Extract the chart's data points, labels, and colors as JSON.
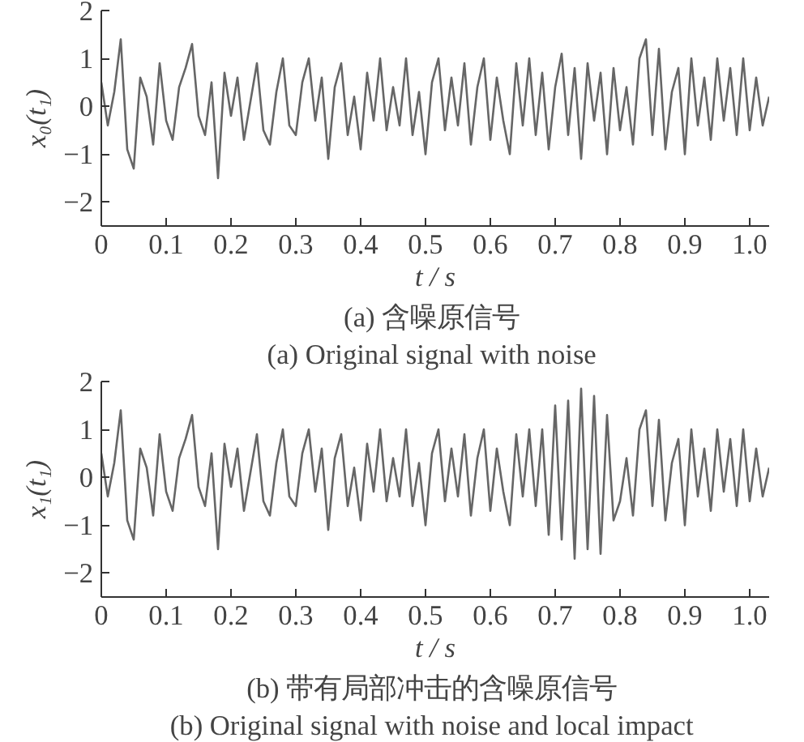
{
  "chart_data": [
    {
      "type": "line",
      "title": "(a)  含噪原信号",
      "subtitle": "(a)  Original signal with noise",
      "xlabel": "t / s",
      "ylabel": "x₀(t₁)",
      "x": [
        0,
        0.01,
        0.02,
        0.03,
        0.04,
        0.05,
        0.06,
        0.07,
        0.08,
        0.09,
        0.1,
        0.11,
        0.12,
        0.13,
        0.14,
        0.15,
        0.16,
        0.17,
        0.18,
        0.19,
        0.2,
        0.21,
        0.22,
        0.23,
        0.24,
        0.25,
        0.26,
        0.27,
        0.28,
        0.29,
        0.3,
        0.31,
        0.32,
        0.33,
        0.34,
        0.35,
        0.36,
        0.37,
        0.38,
        0.39,
        0.4,
        0.41,
        0.42,
        0.43,
        0.44,
        0.45,
        0.46,
        0.47,
        0.48,
        0.49,
        0.5,
        0.51,
        0.52,
        0.53,
        0.54,
        0.55,
        0.56,
        0.57,
        0.58,
        0.59,
        0.6,
        0.61,
        0.62,
        0.63,
        0.64,
        0.65,
        0.66,
        0.67,
        0.68,
        0.69,
        0.7,
        0.71,
        0.72,
        0.73,
        0.74,
        0.75,
        0.76,
        0.77,
        0.78,
        0.79,
        0.8,
        0.81,
        0.82,
        0.83,
        0.84,
        0.85,
        0.86,
        0.87,
        0.88,
        0.89,
        0.9,
        0.91,
        0.92,
        0.93,
        0.94,
        0.95,
        0.96,
        0.97,
        0.98,
        0.99,
        1.0,
        1.01,
        1.02,
        1.03
      ],
      "series": [
        {
          "color": "#666666",
          "values": [
            0.5,
            -0.4,
            0.3,
            1.4,
            -0.9,
            -1.3,
            0.6,
            0.2,
            -0.8,
            0.9,
            -0.3,
            -0.7,
            0.4,
            0.8,
            1.3,
            -0.2,
            -0.6,
            0.5,
            -1.5,
            0.7,
            -0.2,
            0.6,
            -0.7,
            0.1,
            0.9,
            -0.5,
            -0.8,
            0.3,
            1.0,
            -0.4,
            -0.6,
            0.5,
            1.0,
            -0.3,
            0.6,
            -1.1,
            0.4,
            0.9,
            -0.6,
            0.2,
            -0.9,
            0.7,
            -0.3,
            1.0,
            -0.5,
            0.4,
            -0.4,
            1.0,
            -0.6,
            0.3,
            -1.0,
            0.5,
            1.0,
            -0.5,
            0.6,
            -0.4,
            0.9,
            -0.8,
            0.4,
            1.0,
            -0.7,
            0.6,
            -0.3,
            -1.0,
            0.9,
            -0.4,
            1.0,
            -0.6,
            0.7,
            -0.9,
            0.4,
            1.1,
            -0.6,
            0.8,
            -1.1,
            0.9,
            -0.3,
            0.7,
            -1.0,
            0.8,
            -0.5,
            0.4,
            -0.8,
            1.0,
            1.4,
            -0.6,
            1.2,
            -0.9,
            0.3,
            0.8,
            -1.0,
            1.0,
            -0.4,
            0.6,
            -0.7,
            1.0,
            -0.3,
            0.8,
            -0.6,
            1.0,
            -0.5,
            0.6,
            -0.4,
            0.2
          ]
        }
      ],
      "xlim": [
        0,
        1.03
      ],
      "ylim": [
        -2.5,
        2
      ],
      "xticks": [
        0,
        0.1,
        0.2,
        0.3,
        0.4,
        0.5,
        0.6,
        0.7,
        0.8,
        0.9,
        {
          "value": 1,
          "label": "1.0"
        }
      ],
      "yticks": [
        -2,
        -1,
        0,
        1,
        2
      ],
      "grid": false
    },
    {
      "type": "line",
      "title": "(b)  带有局部冲击的含噪原信号",
      "subtitle": "(b)  Original signal with noise and local impact",
      "xlabel": "t / s",
      "ylabel": "x₁(t₁)",
      "x": [
        0,
        0.01,
        0.02,
        0.03,
        0.04,
        0.05,
        0.06,
        0.07,
        0.08,
        0.09,
        0.1,
        0.11,
        0.12,
        0.13,
        0.14,
        0.15,
        0.16,
        0.17,
        0.18,
        0.19,
        0.2,
        0.21,
        0.22,
        0.23,
        0.24,
        0.25,
        0.26,
        0.27,
        0.28,
        0.29,
        0.3,
        0.31,
        0.32,
        0.33,
        0.34,
        0.35,
        0.36,
        0.37,
        0.38,
        0.39,
        0.4,
        0.41,
        0.42,
        0.43,
        0.44,
        0.45,
        0.46,
        0.47,
        0.48,
        0.49,
        0.5,
        0.51,
        0.52,
        0.53,
        0.54,
        0.55,
        0.56,
        0.57,
        0.58,
        0.59,
        0.6,
        0.61,
        0.62,
        0.63,
        0.64,
        0.65,
        0.66,
        0.67,
        0.68,
        0.69,
        0.7,
        0.71,
        0.72,
        0.73,
        0.74,
        0.75,
        0.76,
        0.77,
        0.78,
        0.79,
        0.8,
        0.81,
        0.82,
        0.83,
        0.84,
        0.85,
        0.86,
        0.87,
        0.88,
        0.89,
        0.9,
        0.91,
        0.92,
        0.93,
        0.94,
        0.95,
        0.96,
        0.97,
        0.98,
        0.99,
        1.0,
        1.01,
        1.02,
        1.03
      ],
      "series": [
        {
          "color": "#666666",
          "values": [
            0.5,
            -0.4,
            0.3,
            1.4,
            -0.9,
            -1.3,
            0.6,
            0.2,
            -0.8,
            0.9,
            -0.3,
            -0.7,
            0.4,
            0.8,
            1.3,
            -0.2,
            -0.6,
            0.5,
            -1.5,
            0.7,
            -0.2,
            0.6,
            -0.7,
            0.1,
            0.9,
            -0.5,
            -0.8,
            0.3,
            1.0,
            -0.4,
            -0.6,
            0.5,
            1.0,
            -0.3,
            0.6,
            -1.1,
            0.4,
            0.9,
            -0.6,
            0.2,
            -0.9,
            0.7,
            -0.3,
            1.0,
            -0.5,
            0.4,
            -0.4,
            1.0,
            -0.6,
            0.3,
            -1.0,
            0.5,
            1.0,
            -0.5,
            0.6,
            -0.4,
            0.9,
            -0.8,
            0.4,
            1.0,
            -0.7,
            0.6,
            -0.3,
            -1.0,
            0.9,
            -0.4,
            1.0,
            -0.6,
            1.0,
            -1.2,
            1.5,
            -1.3,
            1.6,
            -1.7,
            1.85,
            -1.5,
            1.7,
            -1.6,
            1.3,
            -0.9,
            -0.5,
            0.4,
            -0.8,
            1.0,
            1.4,
            -0.6,
            1.2,
            -0.9,
            0.3,
            0.8,
            -1.0,
            1.0,
            -0.4,
            0.6,
            -0.7,
            1.0,
            -0.3,
            0.8,
            -0.6,
            1.0,
            -0.5,
            0.6,
            -0.4,
            0.2
          ]
        }
      ],
      "xlim": [
        0,
        1.03
      ],
      "ylim": [
        -2.5,
        2
      ],
      "xticks": [
        0,
        0.1,
        0.2,
        0.3,
        0.4,
        0.5,
        0.6,
        0.7,
        0.8,
        0.9,
        {
          "value": 1,
          "label": "1.0"
        }
      ],
      "yticks": [
        -2,
        -1,
        0,
        1,
        2
      ],
      "grid": false
    }
  ]
}
